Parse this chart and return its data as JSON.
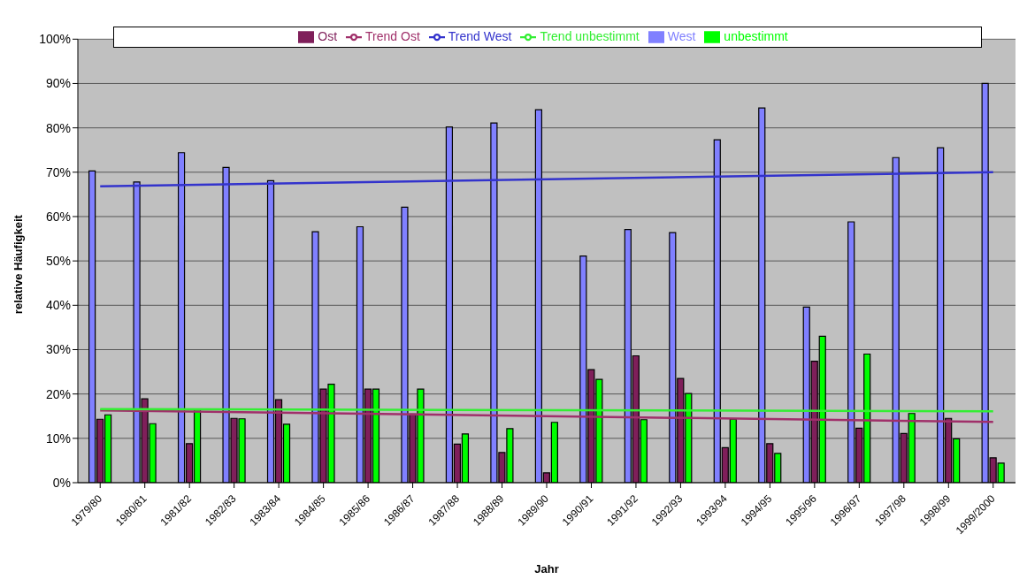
{
  "chart_data": {
    "type": "bar",
    "xlabel": "Jahr",
    "ylabel": "relative Häufigkeit",
    "categories": [
      "1979/80",
      "1980/81",
      "1981/82",
      "1982/83",
      "1983/84",
      "1984/85",
      "1985/86",
      "1986/87",
      "1987/88",
      "1988/89",
      "1989/90",
      "1990/91",
      "1991/92",
      "1992/93",
      "1993/94",
      "1994/95",
      "1995/96",
      "1996/97",
      "1997/98",
      "1998/99",
      "1999/2000"
    ],
    "series": [
      {
        "name": "West",
        "color": "#8080ff",
        "values": [
          70.3,
          67.8,
          74.4,
          71.1,
          68.1,
          56.6,
          57.7,
          62.1,
          80.2,
          81.1,
          84.1,
          51.1,
          57.1,
          56.4,
          77.3,
          84.5,
          39.6,
          58.8,
          73.3,
          75.5,
          90.0
        ]
      },
      {
        "name": "Ost",
        "color": "#7f1f5a",
        "values": [
          14.3,
          18.9,
          8.8,
          14.5,
          18.7,
          21.1,
          21.1,
          15.5,
          8.7,
          6.8,
          2.2,
          25.5,
          28.6,
          23.5,
          7.9,
          8.8,
          27.4,
          12.3,
          11.1,
          14.5,
          5.6
        ]
      },
      {
        "name": "unbestimmt",
        "color": "#00ff00",
        "values": [
          15.3,
          13.3,
          16.5,
          14.4,
          13.2,
          22.2,
          21.1,
          21.1,
          11.0,
          12.2,
          13.6,
          23.3,
          14.2,
          20.1,
          14.3,
          6.6,
          33.0,
          29.0,
          15.6,
          9.9,
          4.4
        ]
      },
      {
        "name": "Trend West",
        "type": "line",
        "color": "#3333cc",
        "x": [
          "1979/80",
          "1999/2000"
        ],
        "values": [
          66.8,
          70.0
        ]
      },
      {
        "name": "Trend Ost",
        "type": "line",
        "color": "#a0306a",
        "x": [
          "1979/80",
          "1999/2000"
        ],
        "values": [
          16.3,
          13.7
        ]
      },
      {
        "name": "Trend unbestimmt",
        "type": "line",
        "color": "#33ee33",
        "x": [
          "1979/80",
          "1999/2000"
        ],
        "values": [
          16.6,
          16.1
        ]
      }
    ],
    "ylim": [
      0,
      100
    ],
    "yticks": [
      {
        "value": 0,
        "label": "0%"
      },
      {
        "value": 10,
        "label": "10%"
      },
      {
        "value": 20,
        "label": "20%"
      },
      {
        "value": 30,
        "label": "30%"
      },
      {
        "value": 40,
        "label": "40%"
      },
      {
        "value": 50,
        "label": "50%"
      },
      {
        "value": 60,
        "label": "60%"
      },
      {
        "value": 70,
        "label": "70%"
      },
      {
        "value": 80,
        "label": "80%"
      },
      {
        "value": 90,
        "label": "90%"
      },
      {
        "value": 100,
        "label": "100%"
      }
    ],
    "grid": "y",
    "legend": "top",
    "marker": "none",
    "line_style": "solid"
  }
}
